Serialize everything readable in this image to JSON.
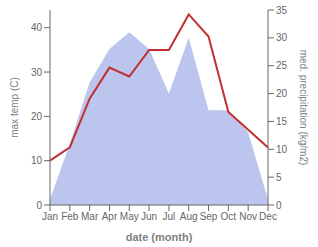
{
  "chart_data": {
    "type": "line",
    "xlabel": "date (month)",
    "ylabel": "max temp (C)",
    "y2label": "med. precipitation (kg/m2)",
    "categories": [
      "Jan",
      "Feb",
      "Mar",
      "Apr",
      "May",
      "Jun",
      "Jul",
      "Aug",
      "Sep",
      "Oct",
      "Nov",
      "Dec"
    ],
    "series": [
      {
        "type": "area",
        "color": "#bbc5ee",
        "axis": "y2",
        "values": [
          1,
          11,
          22,
          28,
          31,
          28,
          20,
          30,
          17,
          17,
          13,
          1
        ]
      },
      {
        "type": "line",
        "color": "#c03030",
        "values": [
          10,
          13,
          24,
          31,
          29,
          35,
          35,
          43,
          38,
          21,
          17,
          13
        ]
      }
    ],
    "ylim": [
      0,
      44
    ],
    "yticks": [
      0,
      10,
      20,
      30,
      40
    ],
    "y2lim": [
      0,
      35
    ],
    "y2ticks": [
      0,
      5,
      10,
      15,
      20,
      25,
      30,
      35
    ],
    "grid": false
  }
}
